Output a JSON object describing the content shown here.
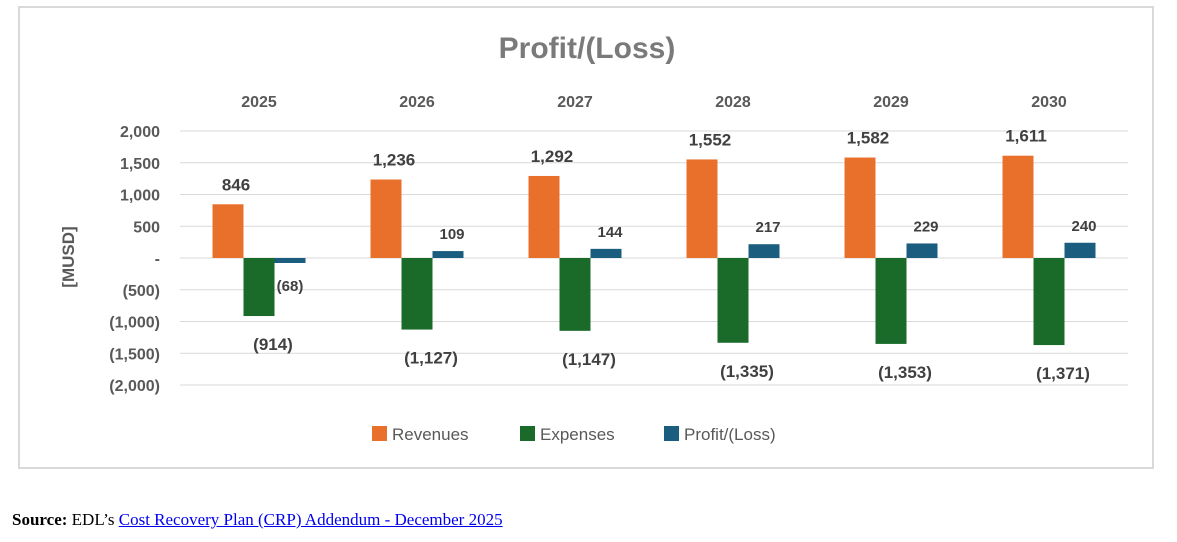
{
  "chart_data": {
    "type": "bar",
    "title": "Profit/(Loss)",
    "ylabel": "[MUSD]",
    "xlabel": "",
    "categories": [
      "2025",
      "2026",
      "2027",
      "2028",
      "2029",
      "2030"
    ],
    "ylim": [
      -2000,
      2000
    ],
    "yticks": [
      2000,
      1500,
      1000,
      500,
      0,
      -500,
      -1000,
      -1500,
      -2000
    ],
    "ytick_labels": [
      "2,000",
      "1,500",
      "1,000",
      "500",
      "-",
      "(500)",
      "(1,000)",
      "(1,500)",
      "(2,000)"
    ],
    "legend_position": "bottom",
    "grid": true,
    "series": [
      {
        "name": "Revenues",
        "color": "#e8702a",
        "values": [
          846,
          1236,
          1292,
          1552,
          1582,
          1611
        ],
        "labels": [
          "846",
          "1,236",
          "1,292",
          "1,552",
          "1,582",
          "1,611"
        ]
      },
      {
        "name": "Expenses",
        "color": "#1a6b2a",
        "values": [
          -914,
          -1127,
          -1147,
          -1335,
          -1353,
          -1371
        ],
        "labels": [
          "(914)",
          "(1,127)",
          "(1,147)",
          "(1,335)",
          "(1,353)",
          "(1,371)"
        ]
      },
      {
        "name": "Profit/(Loss)",
        "color": "#1a5d7e",
        "values": [
          -68,
          109,
          144,
          217,
          229,
          240
        ],
        "labels": [
          "(68)",
          "109",
          "144",
          "217",
          "229",
          "240"
        ]
      }
    ]
  },
  "source": {
    "label": "Source:",
    "text": " EDL’s ",
    "link_text": "Cost Recovery Plan (CRP) Addendum - December 2025"
  }
}
